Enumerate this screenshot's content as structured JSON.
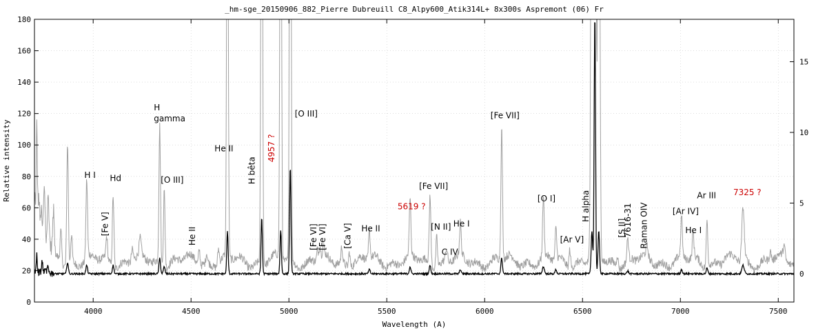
{
  "chart_data": {
    "type": "line",
    "title": "_hm-sge_20150906_882_Pierre Dubreuill  C8_Alpy600_Atik314L+  8x300s  Aspremont (06) Fr",
    "xlabel": "Wavelength (A)",
    "ylabel": "Relative intensity",
    "xlim": [
      3700,
      7580
    ],
    "ylim": [
      0,
      180
    ],
    "y2lim": [
      -2,
      18
    ],
    "grid": true,
    "x_ticks": [
      4000,
      4500,
      5000,
      5500,
      6000,
      6500,
      7000,
      7500
    ],
    "y_ticks": [
      0,
      20,
      40,
      60,
      80,
      100,
      120,
      140,
      160,
      180
    ],
    "y2_ticks": [
      0,
      5,
      10,
      15
    ],
    "series": [
      {
        "role": "gray-expanded",
        "color": "#a0a0a0",
        "axis": "left",
        "baseline": 26,
        "lines": [
          {
            "c": 3702,
            "w": 4,
            "h": 36
          },
          {
            "c": 3712,
            "w": 3,
            "h": 80
          },
          {
            "c": 3722,
            "w": 4,
            "h": 34
          },
          {
            "c": 3734,
            "w": 4,
            "h": 26
          },
          {
            "c": 3750,
            "w": 5,
            "h": 40
          },
          {
            "c": 3770,
            "w": 5,
            "h": 34
          },
          {
            "c": 3798,
            "w": 4,
            "h": 24
          },
          {
            "c": 3835,
            "w": 4,
            "h": 20
          },
          {
            "c": 3869,
            "w": 4,
            "h": 78
          },
          {
            "c": 3889,
            "w": 4,
            "h": 18
          },
          {
            "c": 3967,
            "w": 4,
            "h": 50
          },
          {
            "c": 4069,
            "w": 4,
            "h": 14
          },
          {
            "c": 4102,
            "w": 4,
            "h": 46
          },
          {
            "c": 4200,
            "w": 5,
            "h": 8
          },
          {
            "c": 4240,
            "w": 5,
            "h": 10
          },
          {
            "c": 4340,
            "w": 4,
            "h": 88
          },
          {
            "c": 4363,
            "w": 4,
            "h": 50
          },
          {
            "c": 4542,
            "w": 4,
            "h": 10
          },
          {
            "c": 4580,
            "w": 4,
            "h": 6
          },
          {
            "c": 4640,
            "w": 4,
            "h": 10
          },
          {
            "c": 4686,
            "w": 4,
            "h": 300
          },
          {
            "c": 4861,
            "w": 4,
            "h": 400
          },
          {
            "c": 4958,
            "w": 4,
            "h": 350
          },
          {
            "c": 5007,
            "w": 4,
            "h": 420
          },
          {
            "c": 5146,
            "w": 4,
            "h": 7
          },
          {
            "c": 5158,
            "w": 4,
            "h": 8
          },
          {
            "c": 5176,
            "w": 4,
            "h": 6
          },
          {
            "c": 5270,
            "w": 4,
            "h": 10
          },
          {
            "c": 5309,
            "w": 4,
            "h": 10
          },
          {
            "c": 5411,
            "w": 4,
            "h": 18
          },
          {
            "c": 5619,
            "w": 4,
            "h": 36
          },
          {
            "c": 5721,
            "w": 4,
            "h": 44
          },
          {
            "c": 5755,
            "w": 4,
            "h": 20
          },
          {
            "c": 5805,
            "w": 5,
            "h": 8
          },
          {
            "c": 5876,
            "w": 4,
            "h": 20
          },
          {
            "c": 6087,
            "w": 4,
            "h": 84
          },
          {
            "c": 6300,
            "w": 4,
            "h": 38
          },
          {
            "c": 6364,
            "w": 4,
            "h": 20
          },
          {
            "c": 6435,
            "w": 4,
            "h": 12
          },
          {
            "c": 6548,
            "w": 5,
            "h": 400
          },
          {
            "c": 6563,
            "w": 5,
            "h": 500
          },
          {
            "c": 6583,
            "w": 5,
            "h": 400
          },
          {
            "c": 6678,
            "w": 4,
            "h": 8
          },
          {
            "c": 6731,
            "w": 4,
            "h": 14
          },
          {
            "c": 6830,
            "w": 5,
            "h": 6
          },
          {
            "c": 7006,
            "w": 4,
            "h": 26
          },
          {
            "c": 7065,
            "w": 4,
            "h": 16
          },
          {
            "c": 7136,
            "w": 4,
            "h": 30
          },
          {
            "c": 7320,
            "w": 6,
            "h": 34
          },
          {
            "c": 7460,
            "w": 5,
            "h": 6
          },
          {
            "c": 7530,
            "w": 5,
            "h": 8
          }
        ]
      },
      {
        "role": "black-flux",
        "color": "#000000",
        "axis": "right",
        "baseline": 0,
        "lines": [
          {
            "c": 3712,
            "w": 3,
            "h": 1.2
          },
          {
            "c": 3740,
            "w": 4,
            "h": 0.6
          },
          {
            "c": 3770,
            "w": 4,
            "h": 0.4
          },
          {
            "c": 3869,
            "w": 4,
            "h": 0.8
          },
          {
            "c": 3967,
            "w": 4,
            "h": 0.6
          },
          {
            "c": 4102,
            "w": 4,
            "h": 0.6
          },
          {
            "c": 4340,
            "w": 4,
            "h": 1.1
          },
          {
            "c": 4363,
            "w": 4,
            "h": 0.5
          },
          {
            "c": 4686,
            "w": 3.5,
            "h": 3.0
          },
          {
            "c": 4861,
            "w": 3.5,
            "h": 4.0
          },
          {
            "c": 4958,
            "w": 3.5,
            "h": 3.1
          },
          {
            "c": 5007,
            "w": 3.5,
            "h": 7.6
          },
          {
            "c": 5411,
            "w": 4,
            "h": 0.3
          },
          {
            "c": 5619,
            "w": 4,
            "h": 0.5
          },
          {
            "c": 5721,
            "w": 4,
            "h": 0.6
          },
          {
            "c": 5876,
            "w": 4,
            "h": 0.3
          },
          {
            "c": 6087,
            "w": 4,
            "h": 1.1
          },
          {
            "c": 6300,
            "w": 5,
            "h": 0.5
          },
          {
            "c": 6364,
            "w": 4,
            "h": 0.3
          },
          {
            "c": 6548,
            "w": 4,
            "h": 3.0
          },
          {
            "c": 6563,
            "w": 3.5,
            "h": 18.5
          },
          {
            "c": 6583,
            "w": 4,
            "h": 3.0
          },
          {
            "c": 6731,
            "w": 4,
            "h": 0.2
          },
          {
            "c": 7006,
            "w": 4,
            "h": 0.3
          },
          {
            "c": 7136,
            "w": 4,
            "h": 0.4
          },
          {
            "c": 7320,
            "w": 6,
            "h": 0.6
          }
        ]
      }
    ],
    "annotations": [
      {
        "text": "H I",
        "x": 3955,
        "y": 79,
        "color": "#000000"
      },
      {
        "text": "Hd",
        "x": 4085,
        "y": 77,
        "color": "#000000",
        "big": true
      },
      {
        "text": "[Fe V]",
        "x": 4075,
        "y": 42,
        "color": "#000000",
        "rotate": true
      },
      {
        "text": "H",
        "x": 4310,
        "y": 122,
        "color": "#000000"
      },
      {
        "text": "gamma",
        "x": 4310,
        "y": 115,
        "color": "#000000"
      },
      {
        "text": "[O III]",
        "x": 4345,
        "y": 76,
        "color": "#000000"
      },
      {
        "text": "He II",
        "x": 4520,
        "y": 36,
        "color": "#000000",
        "rotate": true
      },
      {
        "text": "He II",
        "x": 4620,
        "y": 96,
        "color": "#000000"
      },
      {
        "text": "H bêta",
        "x": 4825,
        "y": 75,
        "color": "#000000",
        "rotate": true
      },
      {
        "text": "4957 ?",
        "x": 4925,
        "y": 89,
        "color": "#cc0000",
        "rotate": true
      },
      {
        "text": "[O III]",
        "x": 5030,
        "y": 118,
        "color": "#000000"
      },
      {
        "text": "[Fe VI]",
        "x": 5140,
        "y": 33,
        "color": "#000000",
        "rotate": true
      },
      {
        "text": "[Fe VI]",
        "x": 5185,
        "y": 33,
        "color": "#000000",
        "rotate": true
      },
      {
        "text": "[Ca V]",
        "x": 5315,
        "y": 34,
        "color": "#000000",
        "rotate": true
      },
      {
        "text": "He II",
        "x": 5370,
        "y": 45,
        "color": "#000000"
      },
      {
        "text": "5619 ?",
        "x": 5555,
        "y": 59,
        "color": "#cc0000"
      },
      {
        "text": "[Fe VII]",
        "x": 5665,
        "y": 72,
        "color": "#000000"
      },
      {
        "text": "[N II]",
        "x": 5725,
        "y": 46,
        "color": "#000000"
      },
      {
        "text": "C IV",
        "x": 5780,
        "y": 30,
        "color": "#000000"
      },
      {
        "text": "He I",
        "x": 5840,
        "y": 48,
        "color": "#000000"
      },
      {
        "text": "[Fe VII]",
        "x": 6030,
        "y": 117,
        "color": "#000000"
      },
      {
        "text": "[O I]",
        "x": 6270,
        "y": 64,
        "color": "#000000"
      },
      {
        "text": "[Ar V]",
        "x": 6385,
        "y": 38,
        "color": "#000000"
      },
      {
        "text": "H alpha",
        "x": 6530,
        "y": 51,
        "color": "#000000",
        "rotate": true
      },
      {
        "text": "[S II]",
        "x": 6715,
        "y": 41,
        "color": "#000000",
        "rotate": true
      },
      {
        "text": "7616-31",
        "x": 6745,
        "y": 41,
        "color": "#000000",
        "rotate": true
      },
      {
        "text": "Raman OIV",
        "x": 6828,
        "y": 34,
        "color": "#000000",
        "rotate": true
      },
      {
        "text": "[Ar IV]",
        "x": 6960,
        "y": 56,
        "color": "#000000"
      },
      {
        "text": "He I",
        "x": 7025,
        "y": 44,
        "color": "#000000"
      },
      {
        "text": "Ar III",
        "x": 7085,
        "y": 66,
        "color": "#000000"
      },
      {
        "text": "7325 ?",
        "x": 7270,
        "y": 68,
        "color": "#cc0000"
      }
    ]
  }
}
